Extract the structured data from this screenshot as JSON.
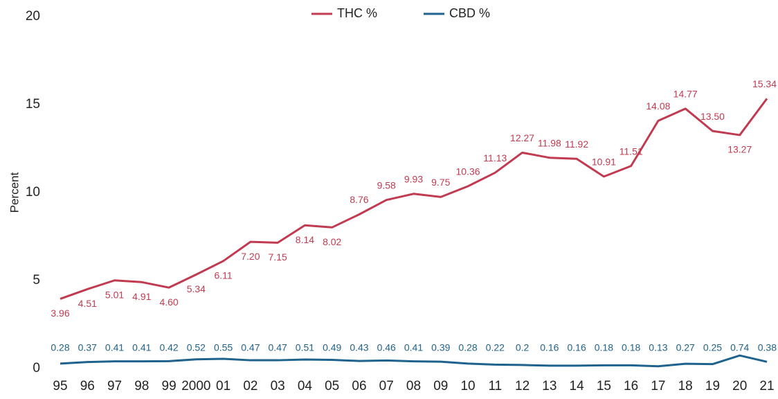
{
  "chart_data": {
    "type": "line",
    "y_label": "Percent",
    "categories": [
      "95",
      "96",
      "97",
      "98",
      "99",
      "2000",
      "01",
      "02",
      "03",
      "04",
      "05",
      "06",
      "07",
      "08",
      "09",
      "10",
      "11",
      "12",
      "13",
      "14",
      "15",
      "16",
      "17",
      "18",
      "19",
      "20",
      "21"
    ],
    "series": [
      {
        "name": "THC %",
        "color": "#c23a50",
        "values": [
          3.96,
          4.51,
          5.01,
          4.91,
          4.6,
          5.34,
          6.11,
          7.2,
          7.15,
          8.14,
          8.02,
          8.76,
          9.58,
          9.93,
          9.75,
          10.36,
          11.13,
          12.27,
          11.98,
          11.92,
          10.91,
          11.51,
          14.08,
          14.77,
          13.5,
          13.27,
          15.34
        ],
        "value_labels": [
          "3.96",
          "4.51",
          "5.01",
          "4.91",
          "4.60",
          "5.34",
          "6.11",
          "7.20",
          "7.15",
          "8.14",
          "8.02",
          "8.76",
          "9.58",
          "9.93",
          "9.75",
          "10.36",
          "11.13",
          "12.27",
          "11.98",
          "11.92",
          "10.91",
          "11.51",
          "14.08",
          "14.77",
          "13.50",
          "13.27",
          "15.34"
        ]
      },
      {
        "name": "CBD %",
        "color": "#1f628e",
        "values": [
          0.28,
          0.37,
          0.41,
          0.41,
          0.42,
          0.52,
          0.55,
          0.47,
          0.47,
          0.51,
          0.49,
          0.43,
          0.46,
          0.41,
          0.39,
          0.28,
          0.22,
          0.2,
          0.16,
          0.16,
          0.18,
          0.18,
          0.13,
          0.27,
          0.25,
          0.74,
          0.38
        ]
      }
    ],
    "ylim": [
      0,
      20
    ],
    "yticks": [
      0,
      5,
      10,
      15,
      20
    ],
    "grid": false,
    "legend": "top"
  }
}
